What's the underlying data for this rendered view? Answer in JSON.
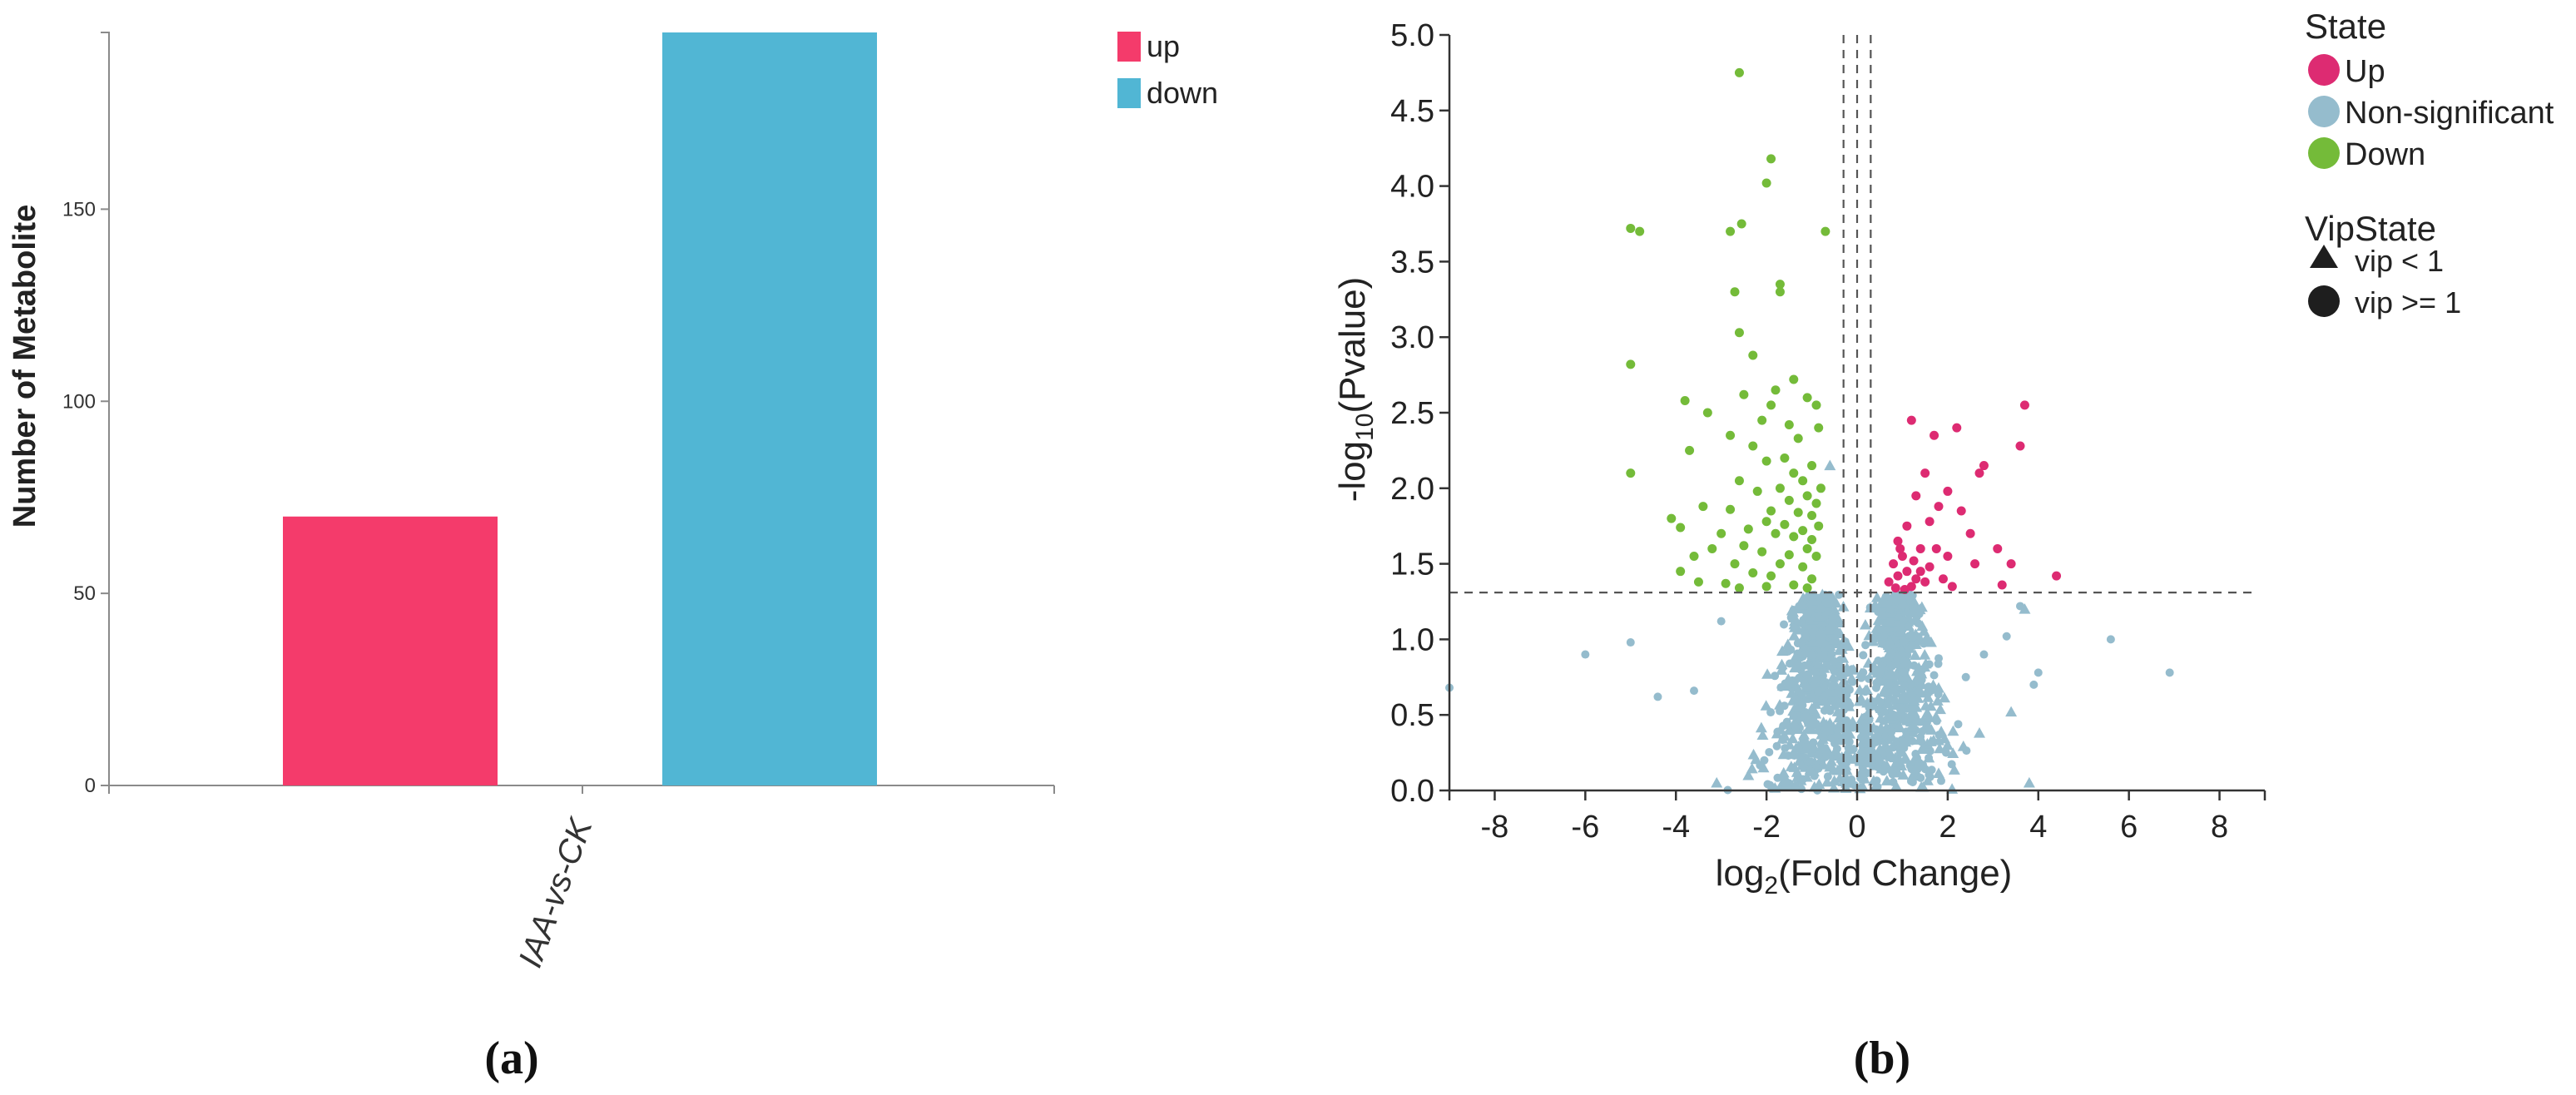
{
  "chart_data": [
    {
      "type": "bar",
      "panel_label": "(a)",
      "categories": [
        "IAA-vs-CK"
      ],
      "series": [
        {
          "name": "up",
          "values": [
            70
          ],
          "color": "#f43b6b"
        },
        {
          "name": "down",
          "values": [
            196
          ],
          "color": "#51b6d4"
        }
      ],
      "ylabel": "Number of Metabolite",
      "ylim": [
        0,
        196
      ],
      "yticks": [
        0,
        50,
        100,
        150
      ],
      "ytick_labels": [
        "0",
        "50",
        "100",
        "150"
      ],
      "legend_position": "top-right",
      "grid": false
    },
    {
      "type": "scatter",
      "panel_label": "(b)",
      "xlabel_prefix": "log",
      "xlabel_sub": "2",
      "xlabel_suffix": "(Fold Change)",
      "ylabel_prefix": "-log",
      "ylabel_sub": "10",
      "ylabel_suffix": "(Pvalue)",
      "xlim": [
        -9,
        9
      ],
      "ylim": [
        0,
        5
      ],
      "xticks": [
        -8,
        -6,
        -4,
        -2,
        0,
        2,
        4,
        6,
        8
      ],
      "xtick_labels": [
        "-8",
        "-6",
        "-4",
        "-2",
        "0",
        "2",
        "4",
        "6",
        "8"
      ],
      "yticks": [
        0,
        0.5,
        1,
        1.5,
        2,
        2.5,
        3,
        3.5,
        4,
        4.5,
        5
      ],
      "ytick_labels": [
        "0.0",
        "0.5",
        "1.0",
        "1.5",
        "2.0",
        "2.5",
        "3.0",
        "3.5",
        "4.0",
        "4.5",
        "5.0"
      ],
      "threshold_lines": {
        "vertical": [
          -0.3,
          0,
          0.3
        ],
        "horizontal": [
          1.31
        ]
      },
      "legend": {
        "state_title": "State",
        "state_items": [
          {
            "label": "Up",
            "color": "#dd2b72"
          },
          {
            "label": "Non-significant",
            "color": "#95bccd"
          },
          {
            "label": "Down",
            "color": "#74bb39"
          }
        ],
        "vip_title": "VipState",
        "vip_items": [
          {
            "label": "vip < 1",
            "shape": "triangle"
          },
          {
            "label": "vip >= 1",
            "shape": "circle"
          }
        ],
        "position": "right"
      },
      "series": [
        {
          "name": "Up",
          "color": "#dd2b72",
          "shape": "circle",
          "points": [
            [
              1.2,
              2.45
            ],
            [
              1.7,
              2.35
            ],
            [
              2.2,
              2.4
            ],
            [
              3.7,
              2.55
            ],
            [
              3.6,
              2.28
            ],
            [
              2.8,
              2.15
            ],
            [
              2.7,
              2.1
            ],
            [
              1.5,
              2.1
            ],
            [
              2.0,
              1.98
            ],
            [
              1.3,
              1.95
            ],
            [
              1.8,
              1.88
            ],
            [
              2.3,
              1.85
            ],
            [
              1.1,
              1.75
            ],
            [
              1.6,
              1.78
            ],
            [
              2.5,
              1.7
            ],
            [
              0.9,
              1.65
            ],
            [
              1.4,
              1.6
            ],
            [
              2.0,
              1.55
            ],
            [
              3.1,
              1.6
            ],
            [
              3.4,
              1.5
            ],
            [
              4.4,
              1.42
            ],
            [
              1.0,
              1.55
            ],
            [
              0.8,
              1.5
            ],
            [
              0.9,
              1.42
            ],
            [
              1.1,
              1.45
            ],
            [
              1.3,
              1.4
            ],
            [
              0.7,
              1.38
            ],
            [
              1.5,
              1.38
            ],
            [
              1.9,
              1.4
            ],
            [
              2.1,
              1.35
            ],
            [
              1.2,
              1.35
            ],
            [
              0.85,
              1.34
            ],
            [
              1.05,
              1.33
            ],
            [
              1.4,
              1.45
            ],
            [
              1.6,
              1.48
            ],
            [
              0.95,
              1.6
            ],
            [
              1.25,
              1.52
            ],
            [
              1.75,
              1.6
            ],
            [
              3.2,
              1.36
            ],
            [
              2.6,
              1.5
            ]
          ]
        },
        {
          "name": "Down",
          "color": "#74bb39",
          "shape": "circle",
          "points": [
            [
              -2.6,
              4.75
            ],
            [
              -1.9,
              4.18
            ],
            [
              -2.0,
              4.02
            ],
            [
              -5.0,
              3.72
            ],
            [
              -4.8,
              3.7
            ],
            [
              -2.8,
              3.7
            ],
            [
              -2.55,
              3.75
            ],
            [
              -0.7,
              3.7
            ],
            [
              -1.7,
              3.35
            ],
            [
              -1.7,
              3.3
            ],
            [
              -2.7,
              3.3
            ],
            [
              -2.6,
              3.03
            ],
            [
              -2.3,
              2.88
            ],
            [
              -5.0,
              2.82
            ],
            [
              -1.4,
              2.72
            ],
            [
              -1.8,
              2.65
            ],
            [
              -2.5,
              2.62
            ],
            [
              -1.1,
              2.6
            ],
            [
              -3.8,
              2.58
            ],
            [
              -1.9,
              2.55
            ],
            [
              -0.9,
              2.55
            ],
            [
              -3.3,
              2.5
            ],
            [
              -2.1,
              2.45
            ],
            [
              -1.5,
              2.42
            ],
            [
              -0.85,
              2.4
            ],
            [
              -2.8,
              2.35
            ],
            [
              -1.3,
              2.33
            ],
            [
              -2.3,
              2.28
            ],
            [
              -3.7,
              2.25
            ],
            [
              -1.6,
              2.2
            ],
            [
              -2.0,
              2.18
            ],
            [
              -1.0,
              2.15
            ],
            [
              -1.4,
              2.1
            ],
            [
              -5.0,
              2.1
            ],
            [
              -2.6,
              2.05
            ],
            [
              -1.2,
              2.05
            ],
            [
              -1.7,
              2.0
            ],
            [
              -0.8,
              2.0
            ],
            [
              -2.2,
              1.98
            ],
            [
              -1.1,
              1.95
            ],
            [
              -1.5,
              1.92
            ],
            [
              -0.9,
              1.9
            ],
            [
              -3.4,
              1.88
            ],
            [
              -2.8,
              1.86
            ],
            [
              -1.9,
              1.85
            ],
            [
              -1.3,
              1.84
            ],
            [
              -1.0,
              1.82
            ],
            [
              -4.1,
              1.8
            ],
            [
              -2.0,
              1.78
            ],
            [
              -1.6,
              1.76
            ],
            [
              -0.85,
              1.75
            ],
            [
              -3.9,
              1.74
            ],
            [
              -2.4,
              1.73
            ],
            [
              -1.2,
              1.72
            ],
            [
              -3.0,
              1.7
            ],
            [
              -1.8,
              1.7
            ],
            [
              -1.4,
              1.68
            ],
            [
              -1.0,
              1.66
            ],
            [
              -2.5,
              1.62
            ],
            [
              -1.1,
              1.6
            ],
            [
              -3.2,
              1.6
            ],
            [
              -2.1,
              1.58
            ],
            [
              -1.5,
              1.56
            ],
            [
              -0.9,
              1.55
            ],
            [
              -3.6,
              1.55
            ],
            [
              -2.7,
              1.5
            ],
            [
              -1.7,
              1.5
            ],
            [
              -1.2,
              1.48
            ],
            [
              -3.9,
              1.45
            ],
            [
              -2.3,
              1.44
            ],
            [
              -1.9,
              1.42
            ],
            [
              -1.0,
              1.4
            ],
            [
              -3.5,
              1.38
            ],
            [
              -2.9,
              1.37
            ],
            [
              -1.4,
              1.36
            ],
            [
              -2.0,
              1.35
            ],
            [
              -1.1,
              1.34
            ],
            [
              -2.6,
              1.34
            ]
          ]
        },
        {
          "name": "Non-significant",
          "color": "#95bccd",
          "shape": "mixed",
          "extra_circles": [
            [
              -9.0,
              0.68
            ],
            [
              -6.0,
              0.9
            ],
            [
              -5.0,
              0.98
            ],
            [
              3.3,
              1.02
            ],
            [
              5.6,
              1.0
            ],
            [
              6.9,
              0.78
            ],
            [
              4.0,
              0.78
            ],
            [
              3.6,
              1.22
            ],
            [
              2.8,
              0.9
            ],
            [
              -3.6,
              0.66
            ],
            [
              -4.4,
              0.62
            ],
            [
              -3.0,
              1.12
            ],
            [
              2.4,
              0.75
            ],
            [
              3.9,
              0.7
            ]
          ],
          "extra_triangles": [
            [
              3.8,
              0.05
            ],
            [
              3.4,
              0.52
            ],
            [
              3.7,
              1.2
            ],
            [
              -0.6,
              2.15
            ],
            [
              -2.4,
              0.1
            ],
            [
              -3.1,
              0.05
            ],
            [
              2.7,
              0.38
            ]
          ],
          "dense_cluster_left": {
            "center_x": -0.9,
            "spread_x": 1.1,
            "max_y": 1.3,
            "count": 650
          },
          "dense_cluster_right": {
            "center_x": 0.9,
            "spread_x": 1.1,
            "max_y": 1.3,
            "count": 650
          }
        }
      ]
    }
  ]
}
